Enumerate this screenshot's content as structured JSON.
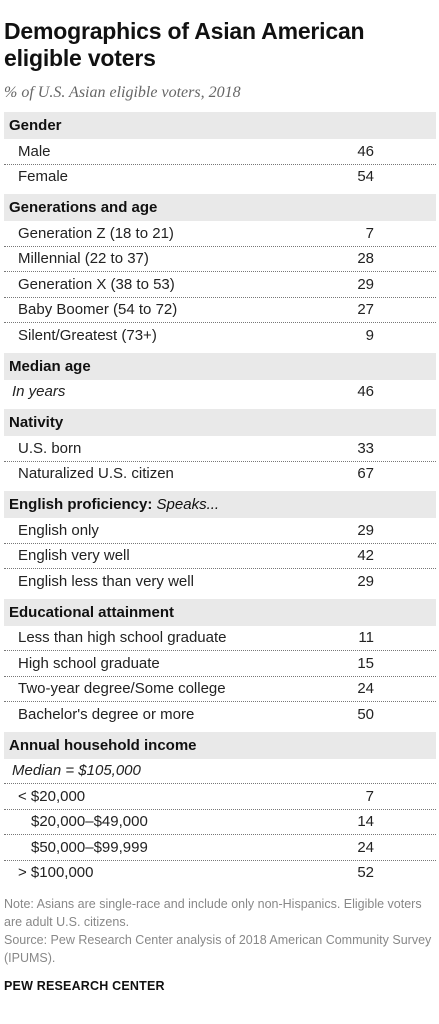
{
  "title": "Demographics of Asian American eligible voters",
  "subtitle": "% of U.S. Asian eligible voters, 2018",
  "chart_data": {
    "type": "table",
    "sections": [
      {
        "heading": "Gender",
        "heading_qualifier": "",
        "rows": [
          {
            "label": "Male",
            "value": "46",
            "style": "normal"
          },
          {
            "label": "Female",
            "value": "54",
            "style": "normal"
          }
        ]
      },
      {
        "heading": "Generations and age",
        "heading_qualifier": "",
        "rows": [
          {
            "label": "Generation Z (18 to 21)",
            "value": "7",
            "style": "normal"
          },
          {
            "label": "Millennial (22 to 37)",
            "value": "28",
            "style": "normal"
          },
          {
            "label": "Generation X (38 to 53)",
            "value": "29",
            "style": "normal"
          },
          {
            "label": "Baby Boomer (54 to 72)",
            "value": "27",
            "style": "normal"
          },
          {
            "label": "Silent/Greatest (73+)",
            "value": "9",
            "style": "normal"
          }
        ]
      },
      {
        "heading": "Median age",
        "heading_qualifier": "",
        "rows": [
          {
            "label": "In years",
            "value": "46",
            "style": "italic"
          }
        ]
      },
      {
        "heading": "Nativity",
        "heading_qualifier": "",
        "rows": [
          {
            "label": "U.S. born",
            "value": "33",
            "style": "normal"
          },
          {
            "label": "Naturalized U.S. citizen",
            "value": "67",
            "style": "normal"
          }
        ]
      },
      {
        "heading": "English proficiency: ",
        "heading_qualifier": "Speaks...",
        "rows": [
          {
            "label": "English only",
            "value": "29",
            "style": "normal"
          },
          {
            "label": "English very well",
            "value": "42",
            "style": "normal"
          },
          {
            "label": "English less than very well",
            "value": "29",
            "style": "normal"
          }
        ]
      },
      {
        "heading": "Educational attainment",
        "heading_qualifier": "",
        "rows": [
          {
            "label": "Less than high school graduate",
            "value": "11",
            "style": "normal"
          },
          {
            "label": "High school graduate",
            "value": "15",
            "style": "normal"
          },
          {
            "label": "Two-year degree/Some college",
            "value": "24",
            "style": "normal"
          },
          {
            "label": "Bachelor's degree or more",
            "value": "50",
            "style": "normal"
          }
        ]
      },
      {
        "heading": "Annual household income",
        "heading_qualifier": "",
        "rows": [
          {
            "label": "Median = $105,000",
            "value": "",
            "style": "italic"
          },
          {
            "label": "< $20,000",
            "value": "7",
            "style": "normal"
          },
          {
            "label": "$20,000–$49,000",
            "value": "14",
            "style": "sub"
          },
          {
            "label": "$50,000–$99,999",
            "value": "24",
            "style": "sub"
          },
          {
            "label": "> $100,000",
            "value": "52",
            "style": "normal"
          }
        ]
      }
    ]
  },
  "notes": {
    "note": "Note: Asians are single-race and include only non-Hispanics. Eligible voters are adult U.S. citizens.",
    "source": "Source: Pew Research Center analysis of 2018 American Community Survey (IPUMS)."
  },
  "brand": "PEW RESEARCH CENTER"
}
